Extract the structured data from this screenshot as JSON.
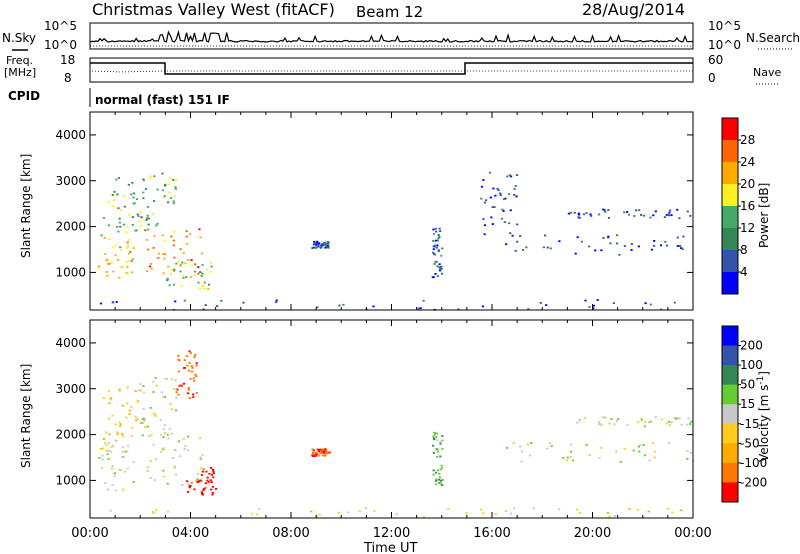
{
  "header": {
    "title": "Christmas Valley West (fitACF)",
    "beam": "Beam 12",
    "date": "28/Aug/2014"
  },
  "aux_panels": {
    "nsky_label": "N.Sky",
    "nsearch_label": "N.Search",
    "nsky_ticks": [
      "10^5",
      "10^0"
    ],
    "nsearch_ticks": [
      "10^5",
      "10^0"
    ],
    "freq_label_1": "Freq.",
    "freq_label_2": "[MHz]",
    "freq_ticks": [
      "18",
      "8"
    ],
    "nave_label": "Nave",
    "nave_ticks": [
      "60",
      "0"
    ],
    "cpid_label": "CPID",
    "cpid_text": "normal (fast) 151 IF"
  },
  "colors": {
    "power_scale": [
      "#0000ff",
      "#3355aa",
      "#338855",
      "#44aa66",
      "#ffee22",
      "#ffaa00",
      "#ff6600",
      "#ff0000"
    ],
    "velocity_scale": [
      "#0000ff",
      "#3355aa",
      "#338855",
      "#66cc33",
      "#c8c8c8",
      "#ffcc22",
      "#ffaa00",
      "#ff7700",
      "#ff0000"
    ]
  },
  "chart_data": [
    {
      "type": "heatmap",
      "panel": "power",
      "ylabel": "Slant Range [km]",
      "xlabel": "Time UT",
      "x_ticks": [
        "00:00",
        "04:00",
        "08:00",
        "12:00",
        "16:00",
        "20:00",
        "00:00"
      ],
      "y_ticks": [
        "1000",
        "2000",
        "3000",
        "4000"
      ],
      "ylim": [
        180,
        4500
      ],
      "xlim_hours": [
        0,
        24
      ],
      "colorbar": {
        "label": "Power [dB]",
        "ticks": [
          "4",
          "8",
          "12",
          "16",
          "20",
          "24",
          "28"
        ],
        "range": [
          0,
          30
        ]
      },
      "echo_regions": [
        {
          "t": [
            0.3,
            1.7
          ],
          "r": [
            800,
            1900
          ],
          "value": 20
        },
        {
          "t": [
            0.5,
            2.2
          ],
          "r": [
            1900,
            3100
          ],
          "value": 12
        },
        {
          "t": [
            1.9,
            3.4
          ],
          "r": [
            2000,
            3300
          ],
          "value": 14
        },
        {
          "t": [
            2.2,
            4.5
          ],
          "r": [
            900,
            2000
          ],
          "value": 24
        },
        {
          "t": [
            3.0,
            4.8
          ],
          "r": [
            650,
            1300
          ],
          "value": 16
        },
        {
          "t": [
            8.8,
            9.5
          ],
          "r": [
            1550,
            1700
          ],
          "value": 6
        },
        {
          "t": [
            13.6,
            14.0
          ],
          "r": [
            900,
            2100
          ],
          "value": 8
        },
        {
          "t": [
            15.5,
            17.0
          ],
          "r": [
            1800,
            3200
          ],
          "value": 6
        },
        {
          "t": [
            16.5,
            24.0
          ],
          "r": [
            1400,
            1850
          ],
          "value": 6
        },
        {
          "t": [
            19.0,
            24.0
          ],
          "r": [
            2200,
            2400
          ],
          "value": 6
        },
        {
          "t": [
            0.0,
            24.0
          ],
          "r": [
            200,
            420
          ],
          "value": 6
        }
      ]
    },
    {
      "type": "heatmap",
      "panel": "velocity",
      "ylabel": "Slant Range [km]",
      "xlabel": "Time UT",
      "x_ticks": [
        "00:00",
        "04:00",
        "08:00",
        "12:00",
        "16:00",
        "20:00",
        "00:00"
      ],
      "y_ticks": [
        "1000",
        "2000",
        "3000",
        "4000"
      ],
      "ylim": [
        180,
        4500
      ],
      "xlim_hours": [
        0,
        24
      ],
      "colorbar": {
        "label": "Velocity [m s^-1]",
        "ticks": [
          "200",
          "100",
          "50",
          "15",
          "-15",
          "-50",
          "-100",
          "-200"
        ],
        "range": [
          -250,
          250
        ]
      },
      "echo_regions": [
        {
          "t": [
            0.3,
            1.7
          ],
          "r": [
            800,
            1900
          ],
          "value": 0
        },
        {
          "t": [
            0.5,
            2.2
          ],
          "r": [
            1900,
            3100
          ],
          "value": -40
        },
        {
          "t": [
            1.9,
            3.4
          ],
          "r": [
            2000,
            3300
          ],
          "value": 0
        },
        {
          "t": [
            2.2,
            4.5
          ],
          "r": [
            900,
            2000
          ],
          "value": 0
        },
        {
          "t": [
            3.8,
            5.0
          ],
          "r": [
            700,
            1300
          ],
          "value": -220
        },
        {
          "t": [
            3.4,
            4.3
          ],
          "r": [
            2800,
            3900
          ],
          "value": -180
        },
        {
          "t": [
            8.8,
            9.5
          ],
          "r": [
            1550,
            1700
          ],
          "value": -200
        },
        {
          "t": [
            13.6,
            14.0
          ],
          "r": [
            900,
            2100
          ],
          "value": 40
        },
        {
          "t": [
            16.5,
            24.0
          ],
          "r": [
            1400,
            1850
          ],
          "value": 0
        },
        {
          "t": [
            19.0,
            24.0
          ],
          "r": [
            2200,
            2400
          ],
          "value": 0
        },
        {
          "t": [
            0.0,
            24.0
          ],
          "r": [
            200,
            420
          ],
          "value": -25
        }
      ]
    }
  ]
}
